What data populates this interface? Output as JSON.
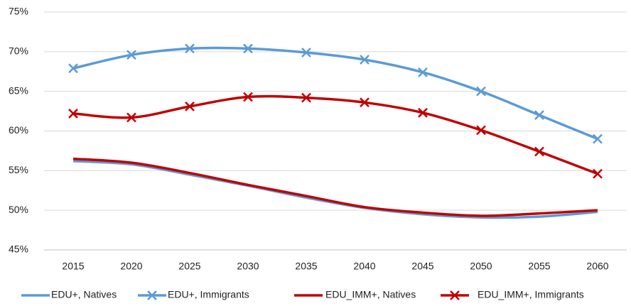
{
  "chart_data": {
    "type": "line",
    "categories": [
      "2015",
      "2020",
      "2025",
      "2030",
      "2035",
      "2040",
      "2045",
      "2050",
      "2055",
      "2060"
    ],
    "series": [
      {
        "name": "EDU+, Natives",
        "color": "#5b9bd5",
        "marker": false,
        "values": [
          56.2,
          55.8,
          54.5,
          53.1,
          51.6,
          50.3,
          49.5,
          49.1,
          49.2,
          49.8
        ]
      },
      {
        "name": "EDU+, Immigrants",
        "color": "#5b9bd5",
        "marker": true,
        "values": [
          67.9,
          69.6,
          70.4,
          70.4,
          69.9,
          69.0,
          67.4,
          65.0,
          62.0,
          59.0
        ]
      },
      {
        "name": "EDU_IMM+, Natives",
        "color": "#c00000",
        "marker": false,
        "values": [
          56.5,
          56.0,
          54.7,
          53.2,
          51.8,
          50.4,
          49.7,
          49.3,
          49.6,
          50.0
        ]
      },
      {
        "name": "EDU_IMM+, Immigrants",
        "color": "#c00000",
        "marker": true,
        "values": [
          62.2,
          61.7,
          63.1,
          64.3,
          64.2,
          63.6,
          62.3,
          60.1,
          57.4,
          54.6
        ]
      }
    ],
    "ylim": [
      45,
      75
    ],
    "yticks": [
      {
        "value": 45,
        "label": "45%"
      },
      {
        "value": 50,
        "label": "50%"
      },
      {
        "value": 55,
        "label": "55%"
      },
      {
        "value": 60,
        "label": "60%"
      },
      {
        "value": 65,
        "label": "65%"
      },
      {
        "value": 70,
        "label": "70%"
      },
      {
        "value": 75,
        "label": "75%"
      }
    ],
    "grid": true,
    "legend": "bottom"
  }
}
